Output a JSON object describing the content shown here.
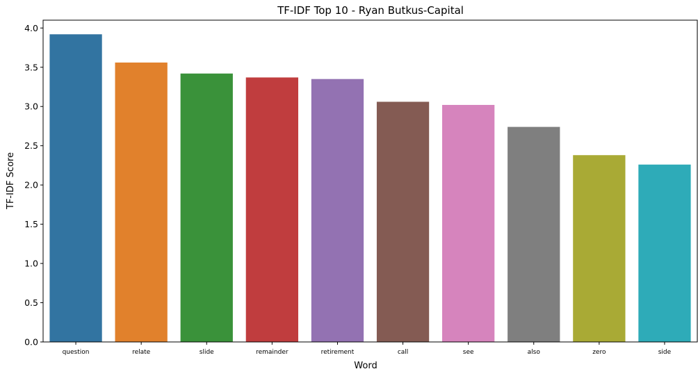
{
  "chart_data": {
    "type": "bar",
    "title": "TF-IDF Top 10 - Ryan Butkus-Capital",
    "xlabel": "Word",
    "ylabel": "TF-IDF Score",
    "ylim": [
      0,
      4.1
    ],
    "yticks": [
      0.0,
      0.5,
      1.0,
      1.5,
      2.0,
      2.5,
      3.0,
      3.5,
      4.0
    ],
    "ytick_labels": [
      "0.0",
      "0.5",
      "1.0",
      "1.5",
      "2.0",
      "2.5",
      "3.0",
      "3.5",
      "4.0"
    ],
    "categories": [
      "question",
      "relate",
      "slide",
      "remainder",
      "retirement",
      "call",
      "see",
      "also",
      "zero",
      "side"
    ],
    "values": [
      3.92,
      3.56,
      3.42,
      3.37,
      3.35,
      3.06,
      3.02,
      2.74,
      2.38,
      2.26
    ],
    "colors": [
      "#3274a1",
      "#e1812c",
      "#3a923a",
      "#c03d3e",
      "#9372b2",
      "#845b53",
      "#d684bd",
      "#7f7f7f",
      "#a9aa35",
      "#2eabb8"
    ],
    "grid": false,
    "legend": "none"
  }
}
